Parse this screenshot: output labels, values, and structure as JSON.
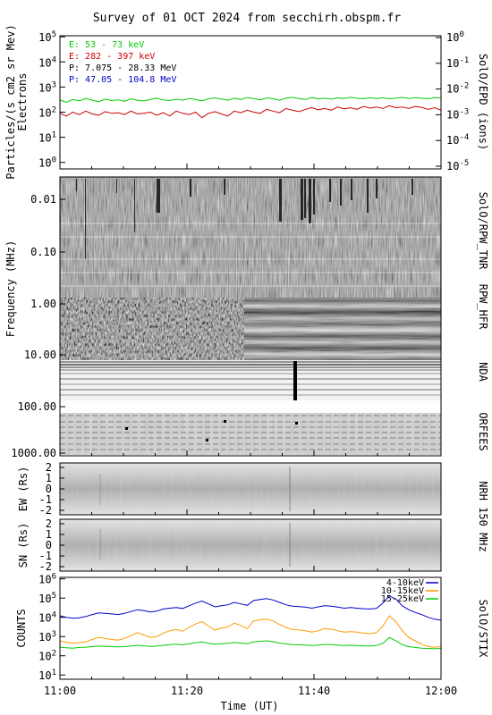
{
  "title": "Survey of 01 OCT 2024 from secchirh.obspm.fr",
  "x_axis": {
    "label": "Time (UT)",
    "ticks": [
      "11:00",
      "11:20",
      "11:40",
      "12:00"
    ]
  },
  "panel_labels": {
    "epd": "SolO/EPD (ions)",
    "rpw": "SolO/RPW_TNR",
    "hfr": "RPW_HFR",
    "nda": "NDA",
    "orfees": "ORFEES",
    "nrh": "NRH 150 MHz",
    "stix": "SolO/STIX"
  },
  "chart_data": [
    {
      "type": "line",
      "panel": "SolO/EPD",
      "ylabel_line1": "Particles/(s cm2 sr Mev)",
      "ylabel_line2": "Electrons",
      "ylabel_right": "SolO/EPD (ions)",
      "y_scale": "log",
      "ylim": [
        0.5,
        100000
      ],
      "y_ticks": [
        "10^0",
        "10^1",
        "10^2",
        "10^3",
        "10^4",
        "10^5"
      ],
      "y2_ticks": [
        "10^-5",
        "10^-4",
        "10^-3",
        "10^-2",
        "10^-1",
        "10^0"
      ],
      "x_range_minutes": [
        0,
        60
      ],
      "legend_placement": "top-left",
      "series": [
        {
          "name": "E: 53 - 73 keV",
          "color": "#00cc00",
          "values": [
            300,
            250,
            320,
            280,
            350,
            300,
            260,
            330,
            290,
            310,
            270,
            340,
            300,
            280,
            320,
            360,
            310,
            290,
            330,
            300,
            350,
            320,
            280,
            340,
            370,
            330,
            300,
            360,
            320,
            380,
            350,
            310,
            370,
            340,
            300,
            360,
            390,
            350,
            320,
            380,
            340,
            360,
            330,
            370,
            350,
            390,
            360,
            340,
            380,
            350,
            370,
            340,
            360,
            390,
            350,
            380,
            360,
            340,
            380,
            370
          ]
        },
        {
          "name": "E: 282 - 397 keV",
          "color": "#cc0000",
          "values": [
            90,
            70,
            100,
            80,
            110,
            85,
            75,
            105,
            90,
            95,
            80,
            110,
            85,
            90,
            100,
            75,
            95,
            70,
            110,
            90,
            80,
            100,
            60,
            90,
            105,
            85,
            70,
            110,
            95,
            120,
            100,
            90,
            130,
            110,
            95,
            140,
            120,
            105,
            130,
            150,
            125,
            140,
            120,
            160,
            135,
            150,
            130,
            170,
            145,
            160,
            140,
            180,
            150,
            160,
            140,
            170,
            155,
            130,
            150,
            120
          ]
        },
        {
          "name": "P: 7.075 - 28.33 MeV",
          "color": "#000000",
          "values": []
        },
        {
          "name": "P: 47.05 - 104.8 MeV",
          "color": "#0000cc",
          "values": []
        }
      ]
    },
    {
      "type": "heatmap",
      "panel": "SolO/RPW_TNR + RPW_HFR + NDA + ORFEES",
      "ylabel": "Frequency (MHz)",
      "y_scale": "log",
      "y_ticks": [
        "0.01",
        "0.10",
        "1.00",
        "10.00",
        "100.00",
        "1000.00"
      ],
      "ylim": [
        0.004,
        2000
      ],
      "x_range_minutes": [
        0,
        60
      ]
    },
    {
      "type": "heatmap",
      "panel": "NRH 150 MHz EW",
      "ylabel": "EW (Rs)",
      "ylim": [
        -2.5,
        2.5
      ],
      "y_ticks": [
        "2",
        "1",
        "0",
        "-1",
        "-2"
      ]
    },
    {
      "type": "heatmap",
      "panel": "NRH 150 MHz SN",
      "ylabel": "SN (Rs)",
      "ylim": [
        -2.5,
        2.5
      ],
      "y_ticks": [
        "2",
        "1",
        "0",
        "-1",
        "-2"
      ]
    },
    {
      "type": "line",
      "panel": "SolO/STIX",
      "ylabel": "COUNTS",
      "ylabel_right": "SolO/STIX",
      "y_scale": "log",
      "ylim": [
        5,
        1000000
      ],
      "y_ticks": [
        "10^1",
        "10^2",
        "10^3",
        "10^4",
        "10^5",
        "10^6"
      ],
      "x_range_minutes": [
        0,
        60
      ],
      "legend_placement": "top-right",
      "series": [
        {
          "name": "4-10keV",
          "color": "#0000cc",
          "values": [
            12000,
            10000,
            9000,
            9500,
            11000,
            14000,
            17000,
            16000,
            15000,
            14000,
            16000,
            20000,
            25000,
            22000,
            19000,
            21000,
            27000,
            30000,
            32000,
            29000,
            40000,
            55000,
            70000,
            50000,
            35000,
            40000,
            45000,
            60000,
            50000,
            42000,
            75000,
            85000,
            95000,
            80000,
            60000,
            45000,
            38000,
            36000,
            34000,
            30000,
            35000,
            40000,
            38000,
            34000,
            30000,
            32000,
            30000,
            28000,
            27000,
            29000,
            55000,
            130000,
            90000,
            40000,
            25000,
            18000,
            14000,
            10000,
            8000,
            7000
          ]
        },
        {
          "name": "10-15keV",
          "color": "#ff9900",
          "values": [
            600,
            500,
            450,
            480,
            520,
            700,
            900,
            800,
            700,
            650,
            800,
            1100,
            1600,
            1200,
            900,
            1000,
            1500,
            2000,
            2300,
            1900,
            3000,
            4500,
            6000,
            3500,
            2200,
            2700,
            3200,
            5000,
            3800,
            2600,
            6500,
            7500,
            8000,
            6500,
            4200,
            3000,
            2300,
            2200,
            2000,
            1700,
            2000,
            2600,
            2400,
            2000,
            1700,
            1800,
            1700,
            1500,
            1400,
            1600,
            3500,
            12000,
            6000,
            2000,
            900,
            600,
            400,
            300,
            280,
            300
          ]
        },
        {
          "name": "15-25keV",
          "color": "#00cc00",
          "values": [
            280,
            260,
            250,
            270,
            280,
            300,
            320,
            310,
            300,
            290,
            300,
            320,
            350,
            330,
            310,
            320,
            350,
            380,
            400,
            370,
            420,
            480,
            520,
            450,
            400,
            420,
            440,
            500,
            460,
            420,
            520,
            560,
            600,
            540,
            460,
            410,
            380,
            370,
            360,
            340,
            360,
            390,
            380,
            360,
            340,
            350,
            340,
            330,
            320,
            340,
            450,
            900,
            600,
            380,
            300,
            270,
            250,
            240,
            230,
            240
          ]
        }
      ]
    }
  ]
}
